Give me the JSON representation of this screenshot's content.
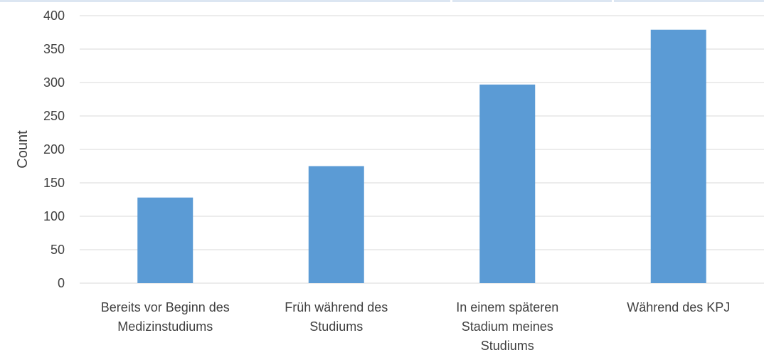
{
  "chart_data": {
    "type": "bar",
    "title": "",
    "xlabel": "",
    "ylabel": "Count",
    "categories": [
      [
        "Bereits vor Beginn des",
        "Medizinstudiums"
      ],
      [
        "Früh während des",
        "Studiums"
      ],
      [
        "In einem späteren",
        "Stadium meines",
        "Studiums"
      ],
      [
        "Während des KPJ"
      ]
    ],
    "values": [
      128,
      175,
      297,
      379
    ],
    "ylim": [
      0,
      400
    ],
    "yticks": [
      0,
      50,
      100,
      150,
      200,
      250,
      300,
      350,
      400
    ],
    "grid": true,
    "legend": "none",
    "colors": {
      "bar": "#5B9BD5",
      "grid": "#D9D9D9",
      "axis": "#D9D9D9",
      "text": "#404040",
      "top_strip": "#DCE6F2"
    }
  }
}
